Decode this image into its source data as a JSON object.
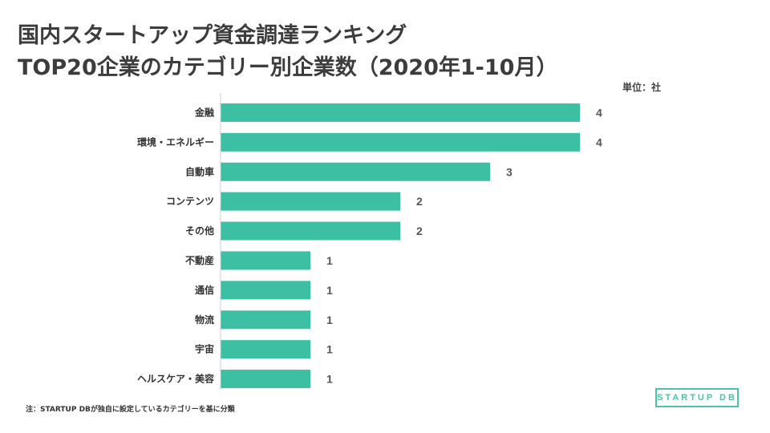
{
  "title_line1": "国内スタートアップ資金調達ランキング",
  "title_line2": "TOP20企業のカテゴリー別企業数（2020年1-10月）",
  "unit_label": "単位：社",
  "footnote": "注：STARTUP DBが独自に設定しているカテゴリーを基に分類",
  "logo_text": "STARTUP DB",
  "colors": {
    "bar": "#3dbfa3",
    "axis": "#cfcfcf",
    "logo": "#4fc1a6"
  },
  "chart_data": {
    "type": "bar",
    "orientation": "horizontal",
    "categories": [
      "金融",
      "環境・エネルギー",
      "自動車",
      "コンテンツ",
      "その他",
      "不動産",
      "通信",
      "物流",
      "宇宙",
      "ヘルスケア・美容"
    ],
    "values": [
      4,
      4,
      3,
      2,
      2,
      1,
      1,
      1,
      1,
      1
    ],
    "xlim": [
      0,
      4
    ],
    "grid": false,
    "legend": "none"
  }
}
